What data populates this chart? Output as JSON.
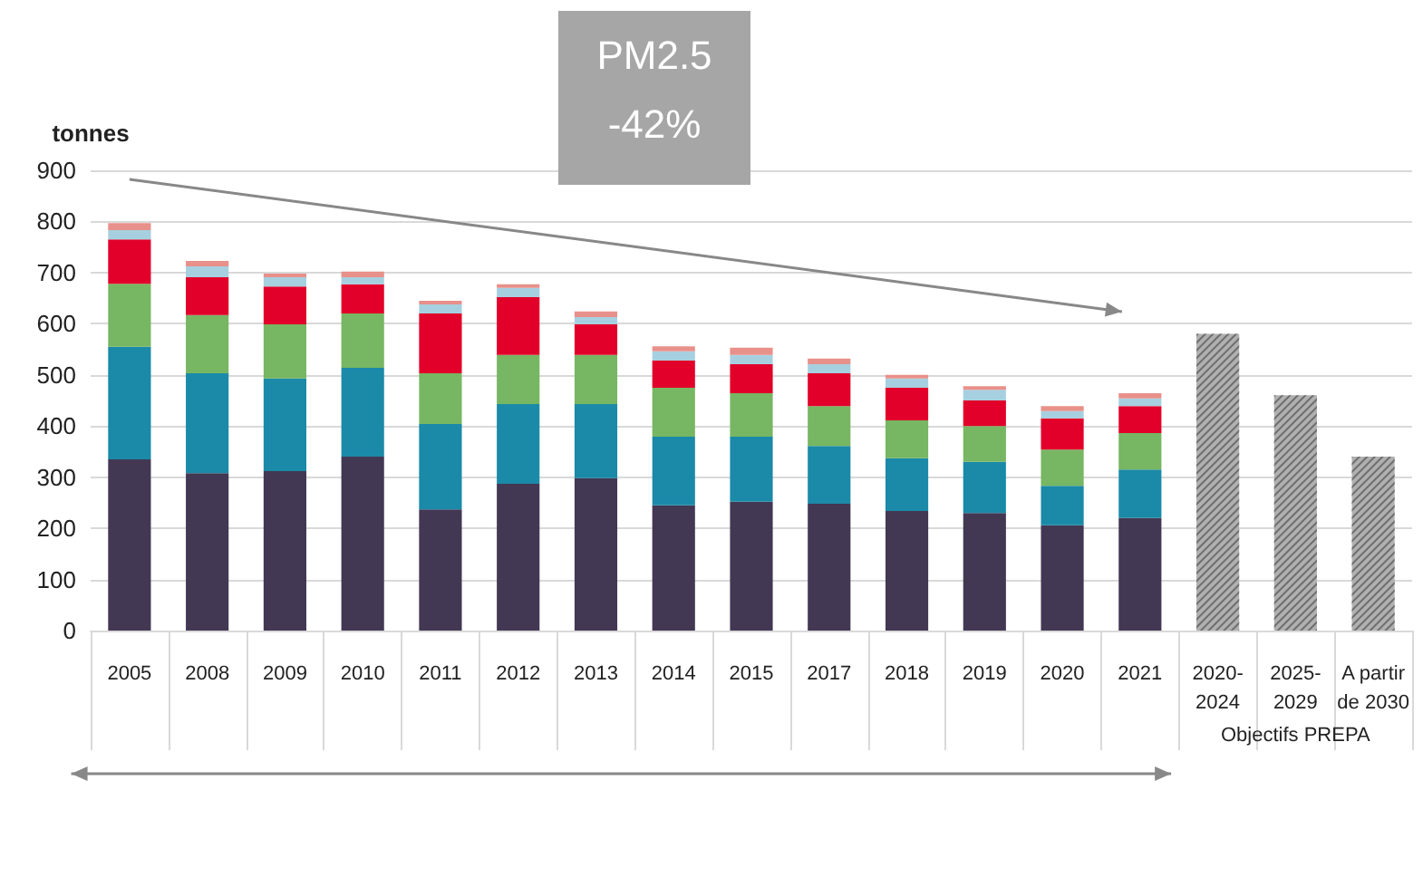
{
  "chart_data": {
    "type": "bar",
    "title": "PM2.5",
    "ylabel": "tonnes",
    "annotations": [
      "-42%",
      "Objectifs PREPA"
    ],
    "categories": [
      "2005",
      "2008",
      "2009",
      "2010",
      "2011",
      "2012",
      "2013",
      "2014",
      "2015",
      "2017",
      "2018",
      "2019",
      "2020",
      "2021",
      "2020-\n2024",
      "2025-\n2029",
      "A partir\nde 2030"
    ],
    "stacked": true,
    "series": [
      {
        "color": "#433853",
        "values": [
          335,
          308,
          312,
          340,
          237,
          287,
          298,
          245,
          252,
          248,
          234,
          230,
          206,
          220,
          null,
          null,
          null
        ]
      },
      {
        "color": "#1a8aa8",
        "values": [
          220,
          195,
          181,
          174,
          167,
          156,
          145,
          134,
          127,
          113,
          103,
          100,
          77,
          95,
          null,
          null,
          null
        ]
      },
      {
        "color": "#77b662",
        "values": [
          123,
          114,
          106,
          106,
          99,
          96,
          96,
          96,
          85,
          78,
          74,
          70,
          71,
          71,
          null,
          null,
          null
        ]
      },
      {
        "color": "#e2002a",
        "values": [
          87,
          74,
          74,
          57,
          117,
          113,
          60,
          53,
          57,
          64,
          64,
          50,
          61,
          53,
          null,
          null,
          null
        ]
      },
      {
        "color": "#a6d0e0",
        "values": [
          18,
          21,
          18,
          14,
          18,
          18,
          14,
          18,
          18,
          18,
          18,
          21,
          14,
          15,
          null,
          null,
          null
        ]
      },
      {
        "color": "#e8908a",
        "values": [
          14,
          11,
          7,
          11,
          7,
          7,
          11,
          10,
          14,
          11,
          7,
          7,
          10,
          10,
          null,
          null,
          null
        ]
      },
      {
        "color": "#b0b0b0",
        "values": [
          null,
          null,
          null,
          null,
          null,
          null,
          null,
          null,
          null,
          null,
          null,
          null,
          null,
          null,
          580,
          460,
          340
        ]
      }
    ],
    "ylim": [
      0,
      900
    ],
    "yticks": [
      0,
      100,
      200,
      300,
      400,
      500,
      600,
      700,
      800,
      900
    ],
    "grid": "y"
  }
}
